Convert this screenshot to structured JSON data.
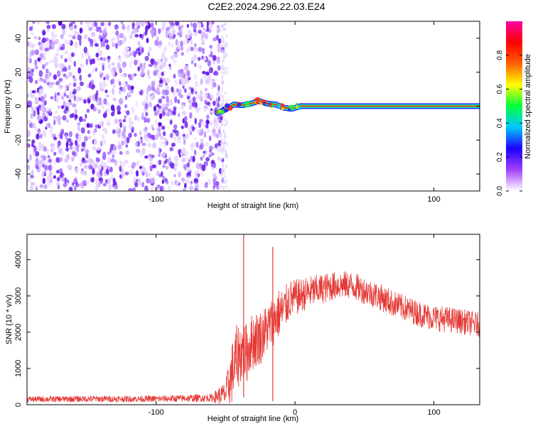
{
  "title": "C2E2.2024.296.22.03.E24",
  "colors": {
    "snr_line": "#e53935",
    "noise_purple": "#7b1fff",
    "frame": "#000000"
  },
  "chart_data": [
    {
      "type": "heatmap",
      "name": "spectrogram",
      "xlabel": "Height of straight line (km)",
      "ylabel": "Frequency (Hz)",
      "xlim": [
        -193,
        133
      ],
      "ylim": [
        -50,
        50
      ],
      "xticks": [
        -100,
        0,
        100
      ],
      "xtick_labels": [
        "-100",
        "",
        "100"
      ],
      "yticks": [
        -40,
        -20,
        0,
        20,
        40
      ],
      "ytick_labels": [
        "-40",
        "-20",
        "0",
        "20",
        "40"
      ],
      "noise_region_x": [
        -193,
        -52
      ],
      "signal_track": {
        "x": [
          -56,
          -50,
          -44,
          -38,
          -32,
          -26,
          -20,
          -14,
          -8,
          -2,
          4,
          10,
          133
        ],
        "freq": [
          -4,
          -2,
          1,
          0.5,
          1.5,
          3,
          1.5,
          1,
          -1,
          -1.5,
          0,
          0,
          0
        ]
      },
      "grid": false,
      "colorbar": {
        "label": "Normalized spectral amplitude",
        "range": [
          0,
          1
        ],
        "ticks": [
          0.0,
          0.2,
          0.4,
          0.6,
          0.8
        ],
        "tick_labels": [
          "0.0",
          "0.2",
          "0.4",
          "0.6",
          "0.8"
        ],
        "colormap": [
          "#ffffff",
          "#a040ff",
          "#2000ff",
          "#00c8ff",
          "#00ff40",
          "#ffff00",
          "#ff6000",
          "#ff0000",
          "#ff00a0"
        ]
      }
    },
    {
      "type": "line",
      "name": "snr",
      "xlabel": "Height of straight line (km)",
      "ylabel": "SNR (10 * v/v)",
      "xlim": [
        -193,
        133
      ],
      "ylim": [
        0,
        4700
      ],
      "xticks": [
        -100,
        0,
        100
      ],
      "xtick_labels": [
        "-100",
        "0",
        "100"
      ],
      "yticks": [
        0,
        1000,
        2000,
        3000,
        4000
      ],
      "ytick_labels": [
        "0",
        "1000",
        "2000",
        "3000",
        "4000"
      ],
      "grid": false,
      "series": [
        {
          "x": [
            -193,
            -150,
            -100,
            -60,
            -50,
            -45,
            -42,
            -38,
            -35,
            -32,
            -28,
            -24,
            -20,
            -16,
            -12,
            -8,
            -4,
            0,
            10,
            20,
            30,
            40,
            50,
            60,
            70,
            80,
            90,
            100,
            110,
            120,
            133
          ],
          "y": [
            150,
            160,
            160,
            190,
            300,
            900,
            1300,
            1500,
            1400,
            1700,
            1800,
            1900,
            2100,
            2300,
            2500,
            2600,
            2900,
            2950,
            3100,
            3200,
            3300,
            3300,
            3150,
            3000,
            2800,
            2650,
            2500,
            2400,
            2350,
            2300,
            2200
          ],
          "noise_amplitude": [
            80,
            90,
            90,
            110,
            350,
            900,
            900,
            900,
            850,
            800,
            800,
            750,
            700,
            700,
            700,
            650,
            550,
            500,
            450,
            420,
            400,
            380,
            380,
            380,
            370,
            360,
            360,
            360,
            360,
            350,
            340
          ]
        }
      ],
      "spikes": [
        {
          "x": -37,
          "y_top": 4700,
          "y_bottom": 200
        },
        {
          "x": -16,
          "y_top": 4350,
          "y_bottom": 100
        }
      ]
    }
  ]
}
